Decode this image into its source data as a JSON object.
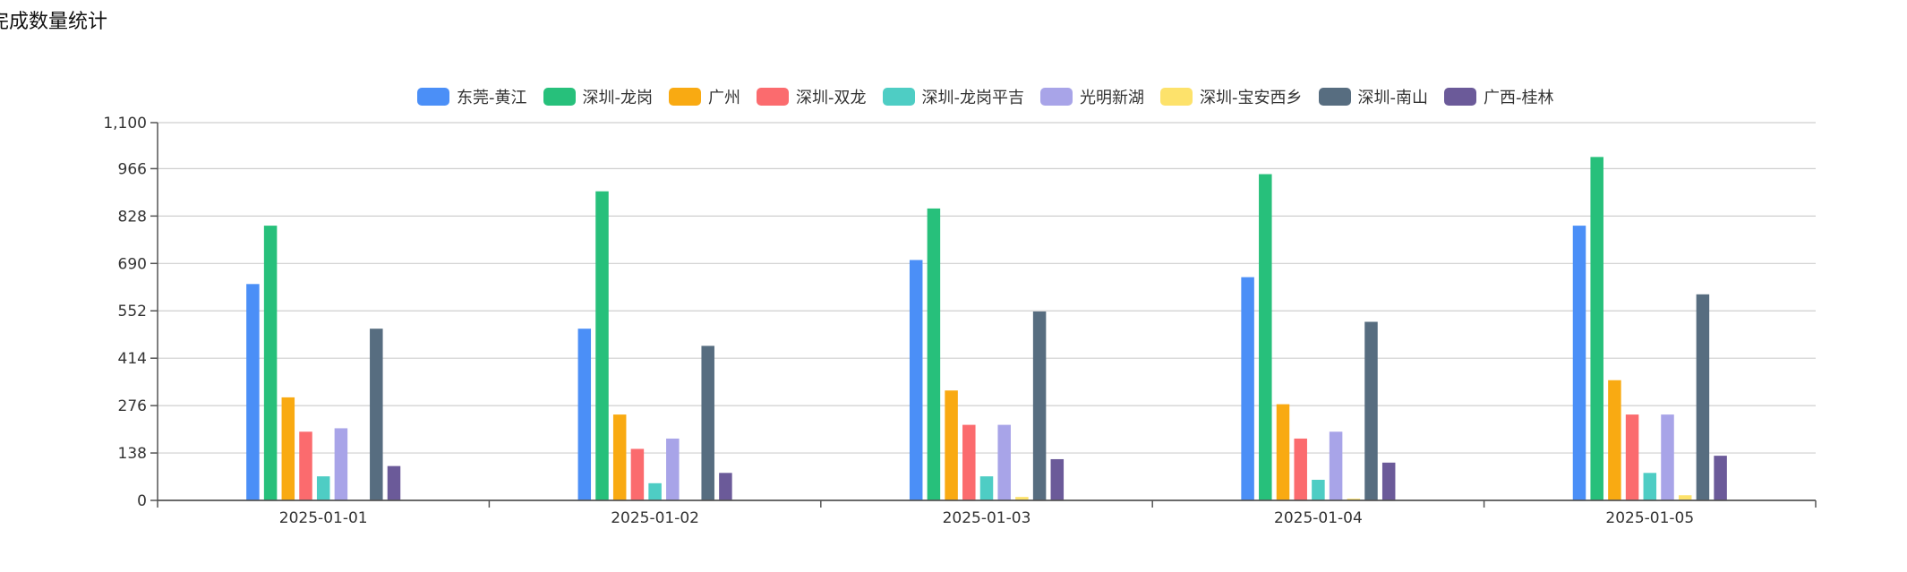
{
  "page": {
    "title": "完成数量统计"
  },
  "chart_data": {
    "type": "bar",
    "title": "",
    "xlabel": "",
    "ylabel": "",
    "categories": [
      "2025-01-01",
      "2025-01-02",
      "2025-01-03",
      "2025-01-04",
      "2025-01-05"
    ],
    "ylim": [
      0,
      1100
    ],
    "yticks": [
      0,
      138,
      276,
      414,
      552,
      690,
      828,
      966,
      1100
    ],
    "ytick_labels": [
      "0",
      "138",
      "276",
      "414",
      "552",
      "690",
      "828",
      "966",
      "1,100"
    ],
    "grid": true,
    "legend_position": "top-center",
    "series": [
      {
        "name": "东莞-黄江",
        "color": "#4b8ff7",
        "values": [
          630,
          500,
          700,
          650,
          800
        ]
      },
      {
        "name": "深圳-龙岗",
        "color": "#27c07b",
        "values": [
          800,
          900,
          850,
          950,
          1000
        ]
      },
      {
        "name": "广州",
        "color": "#f9aa12",
        "values": [
          300,
          250,
          320,
          280,
          350
        ]
      },
      {
        "name": "深圳-双龙",
        "color": "#fb6b6e",
        "values": [
          200,
          150,
          220,
          180,
          250
        ]
      },
      {
        "name": "深圳-龙岗平吉",
        "color": "#4ecdc4",
        "values": [
          70,
          50,
          70,
          60,
          80
        ]
      },
      {
        "name": "光明新湖",
        "color": "#a8a4e8",
        "values": [
          210,
          180,
          220,
          200,
          250
        ]
      },
      {
        "name": "深圳-宝安西乡",
        "color": "#fde26b",
        "values": [
          0,
          0,
          10,
          5,
          15
        ]
      },
      {
        "name": "深圳-南山",
        "color": "#576d80",
        "values": [
          500,
          450,
          550,
          520,
          600
        ]
      },
      {
        "name": "广西-桂林",
        "color": "#6b5a99",
        "values": [
          100,
          80,
          120,
          110,
          130
        ]
      }
    ]
  }
}
